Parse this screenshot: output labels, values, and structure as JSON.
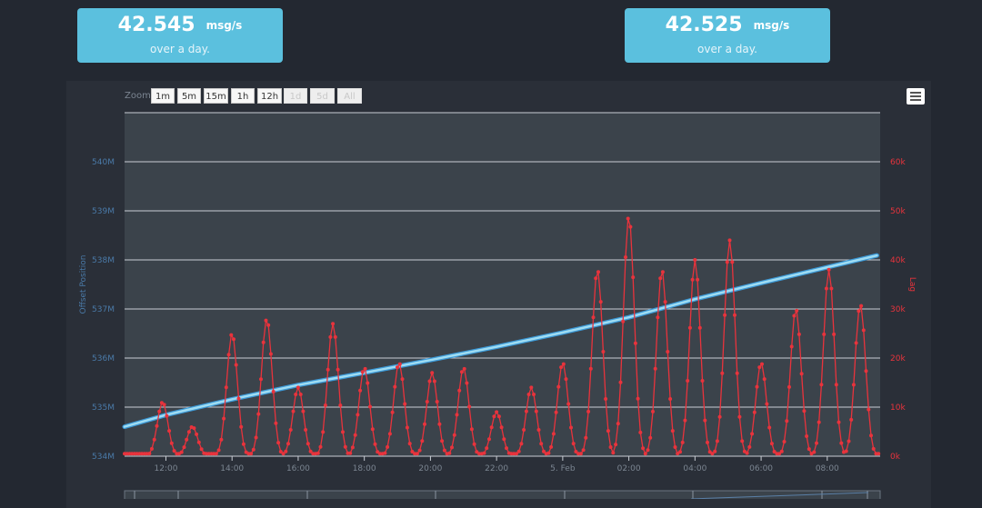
{
  "cards": [
    {
      "value": "42.545",
      "unit": "msg/s",
      "sub": "over a day."
    },
    {
      "value": "42.525",
      "unit": "msg/s",
      "sub": "over a day."
    }
  ],
  "zoom": {
    "label": "Zoom",
    "buttons": [
      "1m",
      "5m",
      "15m",
      "1h",
      "12h",
      "1d",
      "5d",
      "All"
    ],
    "disabled": [
      false,
      false,
      false,
      false,
      false,
      true,
      true,
      true
    ]
  },
  "colors": {
    "offset_series": "#9fdcf2",
    "lag_series": "#e8333c",
    "plot_bg": "#3b434b",
    "card": "#5bc0de"
  },
  "chart_data": {
    "type": "line",
    "x_ticks": [
      "12:00",
      "14:00",
      "16:00",
      "18:00",
      "20:00",
      "22:00",
      "5. Feb",
      "02:00",
      "04:00",
      "06:00",
      "08:00"
    ],
    "y_left": {
      "label": "Offset Position",
      "ticks": [
        "534M",
        "535M",
        "536M",
        "537M",
        "538M",
        "539M",
        "540M"
      ],
      "range": [
        534,
        541
      ]
    },
    "y_right": {
      "label": "Lag",
      "ticks": [
        "0k",
        "10k",
        "20k",
        "30k",
        "40k",
        "50k",
        "60k"
      ],
      "range": [
        0,
        70
      ]
    },
    "x_range_hours": [
      10.75,
      33.6
    ],
    "grid": true,
    "series": [
      {
        "axis": "left",
        "x": [
          10.75,
          12,
          14,
          16,
          18,
          20,
          22,
          24,
          26,
          28,
          30,
          32,
          33.5
        ],
        "values": [
          534.6,
          534.84,
          535.16,
          535.45,
          535.7,
          535.96,
          536.23,
          536.52,
          536.83,
          537.2,
          537.53,
          537.85,
          538.09
        ]
      },
      {
        "axis": "right",
        "peaks": [
          {
            "x": 11.9,
            "value": 11
          },
          {
            "x": 12.8,
            "value": 6
          },
          {
            "x": 14.0,
            "value": 25
          },
          {
            "x": 15.05,
            "value": 28
          },
          {
            "x": 16.0,
            "value": 14
          },
          {
            "x": 17.05,
            "value": 27
          },
          {
            "x": 18.0,
            "value": 18
          },
          {
            "x": 19.05,
            "value": 19
          },
          {
            "x": 20.05,
            "value": 17
          },
          {
            "x": 21.0,
            "value": 18
          },
          {
            "x": 22.0,
            "value": 9
          },
          {
            "x": 23.05,
            "value": 14
          },
          {
            "x": 24.0,
            "value": 19
          },
          {
            "x": 25.05,
            "value": 38
          },
          {
            "x": 26.0,
            "value": 49
          },
          {
            "x": 27.0,
            "value": 38
          },
          {
            "x": 28.0,
            "value": 40
          },
          {
            "x": 29.05,
            "value": 44
          },
          {
            "x": 30.0,
            "value": 19
          },
          {
            "x": 31.05,
            "value": 30
          },
          {
            "x": 32.05,
            "value": 38
          },
          {
            "x": 33.0,
            "value": 31
          }
        ],
        "baseline": 0.5
      }
    ]
  }
}
